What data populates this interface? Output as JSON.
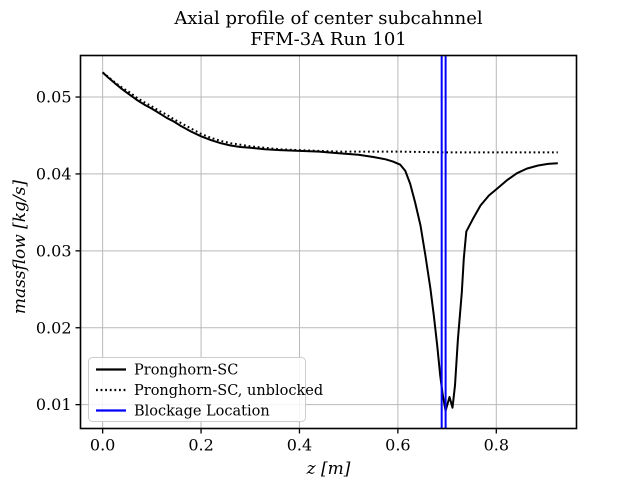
{
  "title": {
    "line1": "Axial profile of center subcahnnel",
    "line2": "FFM-3A Run 101"
  },
  "axes": {
    "xlabel": "z [m]",
    "ylabel": "massflow [kg/s]",
    "xlim": [
      -0.045,
      0.963
    ],
    "ylim": [
      0.0069,
      0.0554
    ],
    "grid": true,
    "xticks": [
      {
        "v": 0.0,
        "label": "0.0"
      },
      {
        "v": 0.2,
        "label": "0.2"
      },
      {
        "v": 0.4,
        "label": "0.4"
      },
      {
        "v": 0.6,
        "label": "0.6"
      },
      {
        "v": 0.8,
        "label": "0.8"
      }
    ],
    "yticks": [
      {
        "v": 0.01,
        "label": "0.01"
      },
      {
        "v": 0.02,
        "label": "0.02"
      },
      {
        "v": 0.03,
        "label": "0.03"
      },
      {
        "v": 0.04,
        "label": "0.04"
      },
      {
        "v": 0.05,
        "label": "0.05"
      }
    ]
  },
  "colors": {
    "line": "#000000",
    "blockage": "#0000ff",
    "grid": "#b9b9b9",
    "background": "#ffffff"
  },
  "legend": [
    {
      "label": "Pronghorn-SC",
      "style": "solid",
      "color": "#000000"
    },
    {
      "label": "Pronghorn-SC, unblocked",
      "style": "dotted",
      "color": "#000000"
    },
    {
      "label": "Blockage Location",
      "style": "solid",
      "color": "#0000ff"
    }
  ],
  "chart_data": {
    "type": "line",
    "title": "Axial profile of center subcahnnel — FFM-3A Run 101",
    "xlabel": "z [m]",
    "ylabel": "massflow [kg/s]",
    "xlim": [
      -0.045,
      0.963
    ],
    "ylim": [
      0.0069,
      0.0554
    ],
    "grid": true,
    "legend_position": "lower left",
    "series": [
      {
        "name": "Pronghorn-SC",
        "style": "solid",
        "color": "#000000",
        "points": [
          [
            0.0,
            0.0532
          ],
          [
            0.01,
            0.0526
          ],
          [
            0.025,
            0.0518
          ],
          [
            0.04,
            0.051
          ],
          [
            0.055,
            0.0503
          ],
          [
            0.07,
            0.0496
          ],
          [
            0.085,
            0.049
          ],
          [
            0.1,
            0.0485
          ],
          [
            0.115,
            0.0479
          ],
          [
            0.13,
            0.0473
          ],
          [
            0.145,
            0.0468
          ],
          [
            0.16,
            0.0462
          ],
          [
            0.18,
            0.0455
          ],
          [
            0.2,
            0.0449
          ],
          [
            0.22,
            0.0444
          ],
          [
            0.24,
            0.044
          ],
          [
            0.26,
            0.0437
          ],
          [
            0.28,
            0.0435
          ],
          [
            0.3,
            0.0434
          ],
          [
            0.33,
            0.0432
          ],
          [
            0.36,
            0.0431
          ],
          [
            0.4,
            0.043
          ],
          [
            0.44,
            0.0429
          ],
          [
            0.48,
            0.0427
          ],
          [
            0.52,
            0.0425
          ],
          [
            0.55,
            0.0422
          ],
          [
            0.575,
            0.0419
          ],
          [
            0.59,
            0.0416
          ],
          [
            0.605,
            0.0412
          ],
          [
            0.615,
            0.0404
          ],
          [
            0.625,
            0.0387
          ],
          [
            0.635,
            0.0363
          ],
          [
            0.646,
            0.0333
          ],
          [
            0.656,
            0.0294
          ],
          [
            0.666,
            0.0251
          ],
          [
            0.673,
            0.0216
          ],
          [
            0.68,
            0.0177
          ],
          [
            0.686,
            0.0138
          ],
          [
            0.691,
            0.0113
          ],
          [
            0.697,
            0.0092
          ],
          [
            0.705,
            0.011
          ],
          [
            0.711,
            0.0096
          ],
          [
            0.716,
            0.0125
          ],
          [
            0.722,
            0.0185
          ],
          [
            0.73,
            0.0246
          ],
          [
            0.734,
            0.029
          ],
          [
            0.739,
            0.0325
          ],
          [
            0.752,
            0.0341
          ],
          [
            0.768,
            0.0359
          ],
          [
            0.785,
            0.0372
          ],
          [
            0.802,
            0.0381
          ],
          [
            0.822,
            0.0392
          ],
          [
            0.842,
            0.0401
          ],
          [
            0.862,
            0.0407
          ],
          [
            0.885,
            0.0411
          ],
          [
            0.905,
            0.0413
          ],
          [
            0.925,
            0.0414
          ]
        ]
      },
      {
        "name": "Pronghorn-SC, unblocked",
        "style": "dotted",
        "color": "#000000",
        "points": [
          [
            0.0,
            0.0532
          ],
          [
            0.01,
            0.0527
          ],
          [
            0.025,
            0.0519
          ],
          [
            0.04,
            0.0512
          ],
          [
            0.055,
            0.0506
          ],
          [
            0.07,
            0.0499
          ],
          [
            0.085,
            0.0493
          ],
          [
            0.1,
            0.0488
          ],
          [
            0.115,
            0.0482
          ],
          [
            0.13,
            0.0477
          ],
          [
            0.145,
            0.0471
          ],
          [
            0.16,
            0.0466
          ],
          [
            0.18,
            0.0459
          ],
          [
            0.2,
            0.0452
          ],
          [
            0.22,
            0.0447
          ],
          [
            0.24,
            0.0443
          ],
          [
            0.26,
            0.044
          ],
          [
            0.28,
            0.0438
          ],
          [
            0.3,
            0.0436
          ],
          [
            0.33,
            0.0434
          ],
          [
            0.36,
            0.0432
          ],
          [
            0.4,
            0.0431
          ],
          [
            0.44,
            0.043
          ],
          [
            0.48,
            0.0429
          ],
          [
            0.52,
            0.0429
          ],
          [
            0.6,
            0.0429
          ],
          [
            0.7,
            0.0428
          ],
          [
            0.8,
            0.0428
          ],
          [
            0.925,
            0.0428
          ]
        ]
      }
    ],
    "vlines": {
      "name": "Blockage Location",
      "x": [
        0.689,
        0.697
      ],
      "color": "#0000ff"
    }
  }
}
